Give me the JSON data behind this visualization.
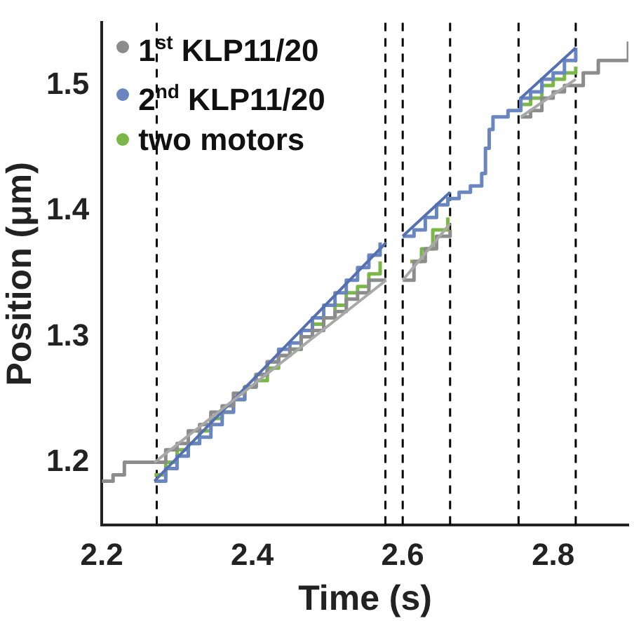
{
  "chart_data": {
    "type": "step",
    "xlabel": "Time (s)",
    "ylabel": "Position (μm)",
    "xlim": [
      2.2,
      2.9
    ],
    "ylim": [
      1.15,
      1.55
    ],
    "xticks": [
      2.2,
      2.4,
      2.6,
      2.8
    ],
    "yticks": [
      1.2,
      1.3,
      1.4,
      1.5
    ],
    "grid": false,
    "legend": "top left",
    "line_style": "solid",
    "series": [
      {
        "name": "1$^{st}$ KLP11/20",
        "color": "#8c8c8c",
        "x": [
          2.2,
          2.215,
          2.23,
          2.27,
          2.285,
          2.3,
          2.315,
          2.33,
          2.345,
          2.36,
          2.375,
          2.39,
          2.405,
          2.42,
          2.435,
          2.45,
          2.465,
          2.48,
          2.495,
          2.51,
          2.525,
          2.54,
          2.555,
          2.578,
          2.59,
          2.6,
          2.615,
          2.63,
          2.645,
          2.663,
          2.7,
          2.757,
          2.77,
          2.785,
          2.8,
          2.815,
          2.83,
          2.84,
          2.86,
          2.88,
          2.9
        ],
        "values": [
          1.185,
          1.19,
          1.2,
          1.2,
          1.21,
          1.215,
          1.225,
          1.23,
          1.24,
          1.245,
          1.255,
          1.26,
          1.27,
          1.28,
          1.285,
          1.29,
          1.3,
          1.305,
          1.315,
          1.32,
          1.33,
          1.335,
          1.345,
          1.345,
          null,
          1.345,
          1.36,
          1.37,
          1.38,
          1.385,
          null,
          1.475,
          1.48,
          1.49,
          1.495,
          1.5,
          1.5,
          1.51,
          1.52,
          1.52,
          1.535
        ]
      },
      {
        "name": "2$^{nd}$ KLP11/20",
        "color": "#6a86c0",
        "x": [
          2.27,
          2.285,
          2.3,
          2.315,
          2.33,
          2.345,
          2.36,
          2.375,
          2.39,
          2.405,
          2.42,
          2.435,
          2.45,
          2.465,
          2.48,
          2.495,
          2.51,
          2.525,
          2.54,
          2.555,
          2.57,
          2.585,
          2.6,
          2.615,
          2.63,
          2.645,
          2.66,
          2.675,
          2.69,
          2.7,
          2.705,
          2.71,
          2.715,
          2.72,
          2.74,
          2.757,
          2.77,
          2.785,
          2.8,
          2.815,
          2.83
        ],
        "values": [
          1.185,
          1.195,
          1.205,
          1.215,
          1.22,
          1.23,
          1.24,
          1.25,
          1.26,
          1.27,
          1.28,
          1.29,
          1.295,
          1.305,
          1.315,
          1.325,
          1.335,
          1.345,
          1.355,
          1.365,
          1.375,
          null,
          1.38,
          1.385,
          1.395,
          1.405,
          1.41,
          1.415,
          1.42,
          1.42,
          1.43,
          1.45,
          1.465,
          1.475,
          1.48,
          1.49,
          1.495,
          1.505,
          1.51,
          1.52,
          1.53
        ]
      },
      {
        "name": "two motors",
        "color": "#7ab648",
        "x": [
          2.27,
          2.285,
          2.3,
          2.315,
          2.33,
          2.345,
          2.36,
          2.375,
          2.39,
          2.405,
          2.42,
          2.435,
          2.45,
          2.465,
          2.48,
          2.495,
          2.51,
          2.525,
          2.54,
          2.555,
          2.57,
          2.59,
          2.61,
          2.625,
          2.64,
          2.66,
          2.7,
          2.757,
          2.77,
          2.785,
          2.8,
          2.815,
          2.83
        ],
        "values": [
          1.19,
          1.2,
          1.21,
          1.215,
          1.225,
          1.235,
          1.24,
          1.25,
          1.26,
          1.265,
          1.275,
          1.285,
          1.29,
          1.3,
          1.31,
          1.315,
          1.325,
          1.335,
          1.34,
          1.35,
          1.36,
          null,
          1.36,
          1.37,
          1.385,
          1.395,
          null,
          1.485,
          1.49,
          1.5,
          1.505,
          1.51,
          1.515
        ]
      },
      {
        "type": "line",
        "color": "#a8a8a8",
        "x": [
          2.27,
          2.578,
          2.59,
          2.6,
          2.663,
          2.7,
          2.757,
          2.83
        ],
        "values": [
          1.2,
          1.345,
          null,
          1.345,
          1.39,
          null,
          1.475,
          1.505
        ]
      },
      {
        "type": "line",
        "color": "#5470b0",
        "x": [
          2.27,
          2.578,
          2.59,
          2.6,
          2.663,
          2.7,
          2.757,
          2.83
        ],
        "values": [
          1.185,
          1.375,
          null,
          1.38,
          1.415,
          null,
          1.49,
          1.53
        ]
      }
    ],
    "ref_lines": [
      {
        "axis": "x",
        "value": 2.273,
        "color": "#000000",
        "line_style": "dashed"
      },
      {
        "axis": "x",
        "value": 2.577,
        "color": "#000000",
        "line_style": "dashed"
      },
      {
        "axis": "x",
        "value": 2.6,
        "color": "#000000",
        "line_style": "dashed"
      },
      {
        "axis": "x",
        "value": 2.663,
        "color": "#000000",
        "line_style": "dashed"
      },
      {
        "axis": "x",
        "value": 2.754,
        "color": "#000000",
        "line_style": "dashed"
      },
      {
        "axis": "x",
        "value": 2.83,
        "color": "#000000",
        "line_style": "dashed"
      }
    ]
  }
}
